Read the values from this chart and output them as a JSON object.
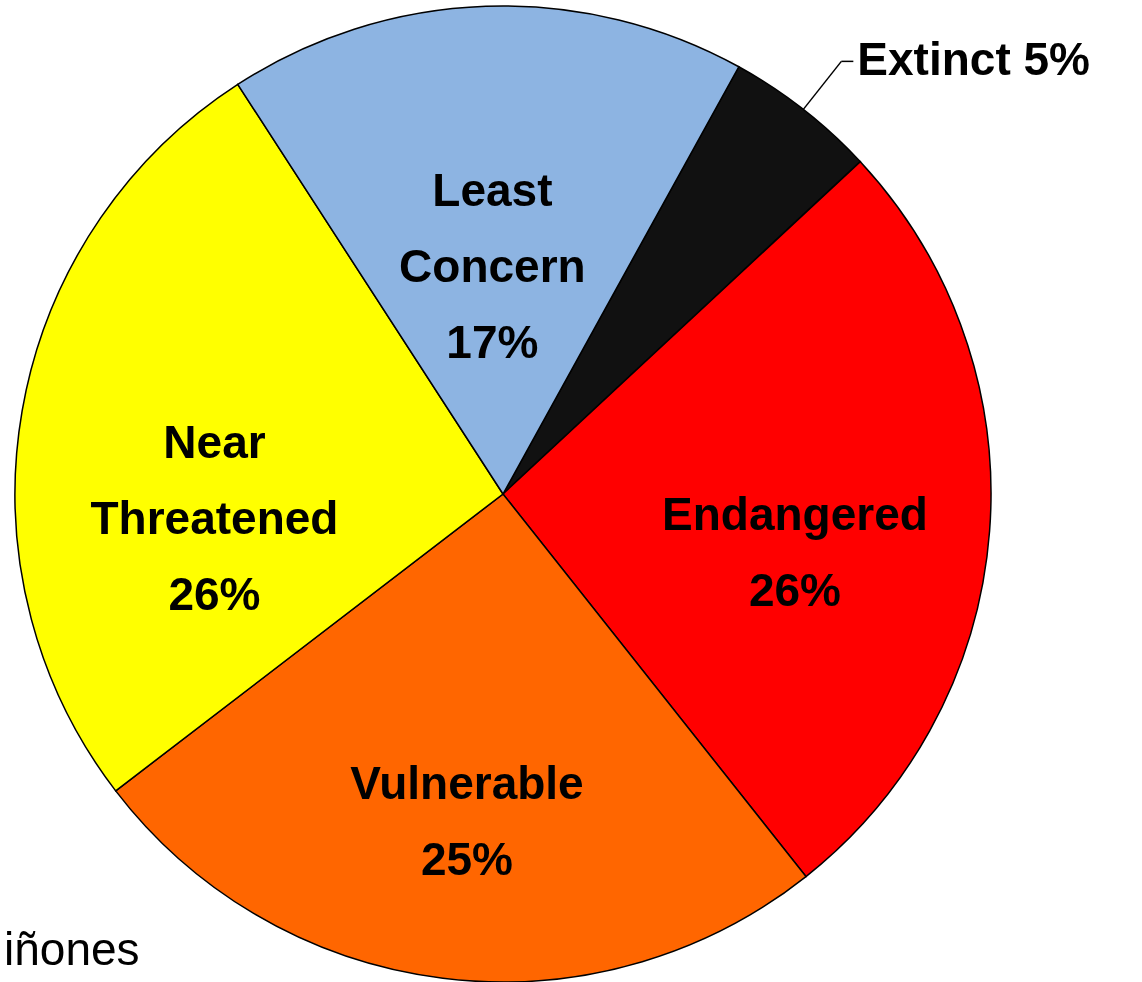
{
  "chart_data": {
    "type": "pie",
    "categories": [
      "Extinct",
      "Endangered",
      "Vulnerable",
      "Near Threatened",
      "Least Concern"
    ],
    "values": [
      5,
      26,
      25,
      26,
      17
    ],
    "colors": [
      "#111111",
      "#ff0000",
      "#ff6600",
      "#ffff00",
      "#8db4e2"
    ],
    "value_labels": [
      "5%",
      "26%",
      "25%",
      "26%",
      "17%"
    ],
    "annotations": [
      "iñones"
    ]
  }
}
